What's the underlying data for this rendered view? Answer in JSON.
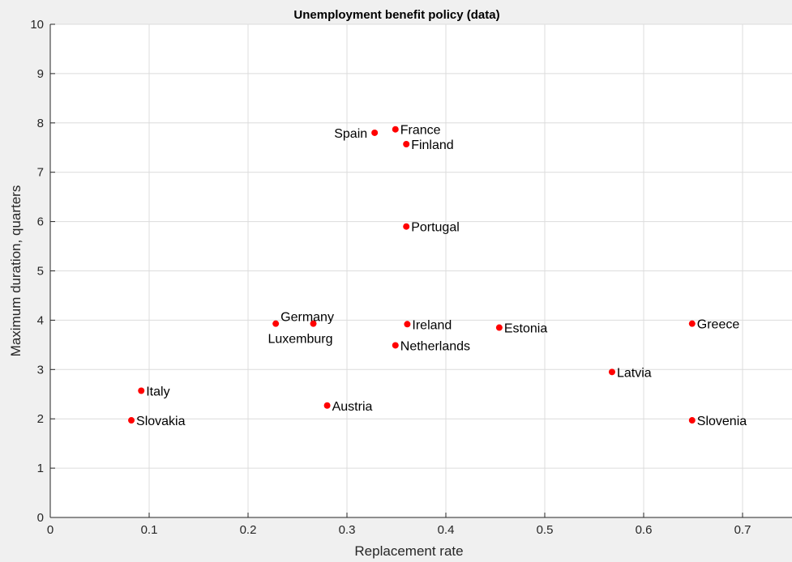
{
  "chart_data": {
    "type": "scatter",
    "title": "Unemployment benefit  policy (data)",
    "xlabel": "Replacement rate",
    "ylabel": "Maximum duration,  quarters",
    "xlim": [
      0,
      0.75
    ],
    "ylim": [
      0,
      10
    ],
    "x_ticks": [
      0,
      0.1,
      0.2,
      0.3,
      0.4,
      0.5,
      0.6,
      0.7
    ],
    "y_ticks": [
      0,
      1,
      2,
      3,
      4,
      5,
      6,
      7,
      8,
      9,
      10
    ],
    "grid": true,
    "marker_color": "#ff0000",
    "points": [
      {
        "label": "Spain",
        "x": 0.328,
        "y": 7.8,
        "label_side": "left"
      },
      {
        "label": "France",
        "x": 0.349,
        "y": 7.87,
        "label_side": "right"
      },
      {
        "label": "Finland",
        "x": 0.36,
        "y": 7.57,
        "label_side": "right"
      },
      {
        "label": "Portugal",
        "x": 0.36,
        "y": 5.9,
        "label_side": "right"
      },
      {
        "label": "Germany",
        "x": 0.228,
        "y": 3.93,
        "label_side": "right-up"
      },
      {
        "label": "Luxemburg",
        "x": 0.266,
        "y": 3.93,
        "label_side": "below-center"
      },
      {
        "label": "Ireland",
        "x": 0.361,
        "y": 3.92,
        "label_side": "right"
      },
      {
        "label": "Netherlands",
        "x": 0.349,
        "y": 3.49,
        "label_side": "right"
      },
      {
        "label": "Estonia",
        "x": 0.454,
        "y": 3.85,
        "label_side": "right"
      },
      {
        "label": "Greece",
        "x": 0.649,
        "y": 3.93,
        "label_side": "right"
      },
      {
        "label": "Latvia",
        "x": 0.568,
        "y": 2.95,
        "label_side": "right"
      },
      {
        "label": "Italy",
        "x": 0.092,
        "y": 2.57,
        "label_side": "right"
      },
      {
        "label": "Austria",
        "x": 0.28,
        "y": 2.27,
        "label_side": "right"
      },
      {
        "label": "Slovakia",
        "x": 0.082,
        "y": 1.97,
        "label_side": "right"
      },
      {
        "label": "Slovenia",
        "x": 0.649,
        "y": 1.97,
        "label_side": "right"
      }
    ]
  }
}
